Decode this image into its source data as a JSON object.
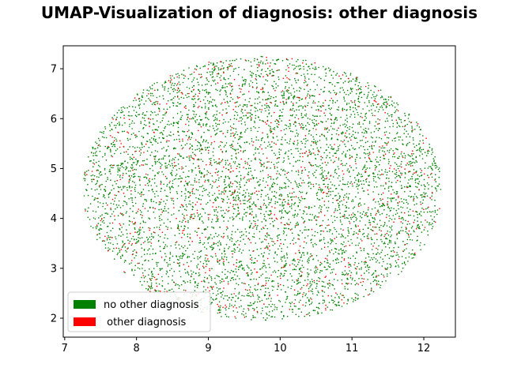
{
  "chart_data": {
    "type": "scatter",
    "title": "UMAP-Visualization of diagnosis: other diagnosis",
    "xlabel": "",
    "ylabel": "",
    "xlim": [
      6.98,
      12.44
    ],
    "ylim": [
      1.62,
      7.46
    ],
    "xticks": [
      7,
      8,
      9,
      10,
      11,
      12
    ],
    "yticks": [
      2,
      3,
      4,
      5,
      6,
      7
    ],
    "grid": false,
    "legend_placement": "lower-left",
    "point_cloud": {
      "shape": "ellipse",
      "center": [
        9.75,
        4.6
      ],
      "radius_x": 2.5,
      "radius_y": 2.65,
      "approx_point_count": 6000
    },
    "series": [
      {
        "name": "no other diagnosis",
        "color": "#008000",
        "share": 0.86
      },
      {
        "name": " other diagnosis",
        "color": "#ff0000",
        "share": 0.14
      }
    ]
  }
}
